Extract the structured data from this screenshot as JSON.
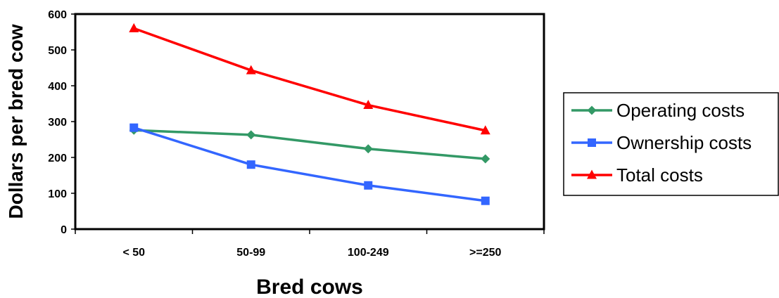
{
  "chart_data": {
    "type": "line",
    "title": "",
    "xlabel": "Bred cows",
    "ylabel": "Dollars per bred cow",
    "categories": [
      "< 50",
      "50-99",
      "100-249",
      ">=250"
    ],
    "ylim": [
      0,
      600
    ],
    "yticks": [
      0,
      100,
      200,
      300,
      400,
      500,
      600
    ],
    "grid": false,
    "legend_position": "right",
    "series": [
      {
        "name": "Operating costs",
        "values": [
          276,
          263,
          224,
          196
        ],
        "color": "#339966",
        "marker": "diamond"
      },
      {
        "name": "Ownership costs",
        "values": [
          283,
          180,
          122,
          79
        ],
        "color": "#3366ff",
        "marker": "square"
      },
      {
        "name": "Total costs",
        "values": [
          560,
          443,
          346,
          275
        ],
        "color": "#ff0000",
        "marker": "triangle"
      }
    ]
  }
}
